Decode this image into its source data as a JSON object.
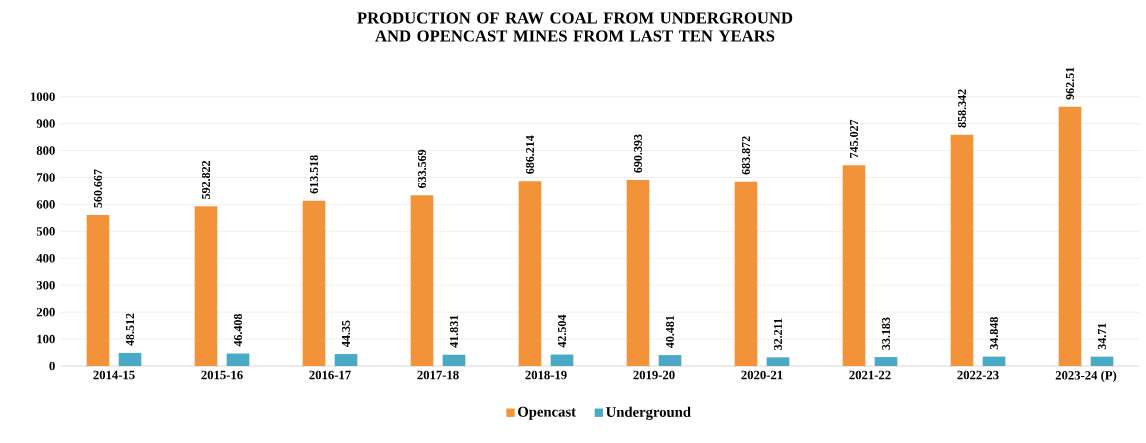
{
  "chart_data": {
    "type": "bar",
    "title": "PRODUCTION OF RAW COAL FROM UNDERGROUND AND OPENCAST MINES FROM LAST TEN YEARS",
    "categories": [
      "2014-15",
      "2015-16",
      "2016-17",
      "2017-18",
      "2018-19",
      "2019-20",
      "2020-21",
      "2021-22",
      "2022-23",
      "2023-24 (P)"
    ],
    "series": [
      {
        "name": "Opencast",
        "color": "#f39339",
        "values": [
          560.667,
          592.822,
          613.518,
          633.569,
          686.214,
          690.393,
          683.872,
          745.027,
          858.342,
          962.51
        ]
      },
      {
        "name": "Underground",
        "color": "#4aa9c4",
        "values": [
          48.512,
          46.408,
          44.35,
          41.831,
          42.504,
          40.481,
          32.211,
          33.183,
          34.848,
          34.71
        ]
      }
    ],
    "ylim": [
      0,
      1000
    ],
    "yticks": [
      0,
      100,
      200,
      300,
      400,
      500,
      600,
      700,
      800,
      900,
      1000
    ],
    "grid": "y",
    "legend": "bottom",
    "data_labels": true
  }
}
